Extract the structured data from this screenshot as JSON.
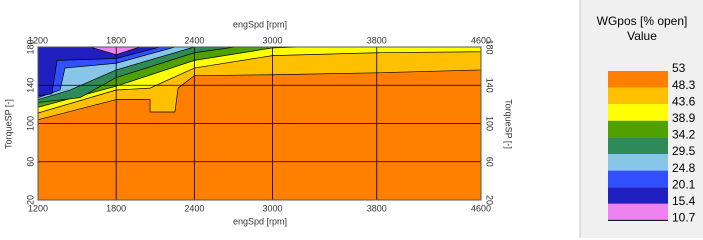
{
  "chart_data": {
    "type": "contour",
    "x_label": "engSpd [rpm]",
    "y_label": "TorqueSP [-]",
    "legend_title": "WGpos [% open]",
    "legend_subtitle": "Value",
    "xlim": [
      1200,
      4600
    ],
    "xticks": [
      1200,
      1800,
      2400,
      3000,
      3800,
      4600
    ],
    "ylim": [
      20,
      180
    ],
    "yticks": [
      20,
      60,
      100,
      140,
      180
    ],
    "grid": true,
    "levels": [
      53,
      48.3,
      43.6,
      38.9,
      34.2,
      29.5,
      24.8,
      20.1,
      15.4,
      10.7
    ],
    "band_colors": [
      "#ff8000",
      "#ffc000",
      "#ffff00",
      "#50a000",
      "#2e8b57",
      "#87c6e8",
      "#3050ff",
      "#2020c0",
      "#ee82ee"
    ],
    "regions": [
      {
        "band": 0,
        "points": [
          [
            1200,
            20
          ],
          [
            4600,
            20
          ],
          [
            4600,
            180
          ],
          [
            1200,
            180
          ]
        ]
      },
      {
        "band": 1,
        "points": [
          [
            1200,
            104
          ],
          [
            1800,
            125
          ],
          [
            2060,
            125
          ],
          [
            2060,
            112
          ],
          [
            2251,
            112
          ],
          [
            2275,
            137
          ],
          [
            2400,
            150
          ],
          [
            3000,
            151
          ],
          [
            3800,
            153
          ],
          [
            4600,
            156
          ],
          [
            4600,
            180
          ],
          [
            1200,
            180
          ]
        ]
      },
      {
        "band": 2,
        "points": [
          [
            1200,
            111
          ],
          [
            1800,
            135
          ],
          [
            2060,
            137
          ],
          [
            2400,
            158
          ],
          [
            3000,
            171
          ],
          [
            3800,
            174
          ],
          [
            4600,
            175
          ],
          [
            4600,
            180
          ],
          [
            1200,
            180
          ]
        ]
      },
      {
        "band": 3,
        "points": [
          [
            1200,
            117
          ],
          [
            1800,
            139
          ],
          [
            2400,
            166
          ],
          [
            3000,
            179
          ],
          [
            3211,
            180
          ],
          [
            1200,
            180
          ]
        ]
      },
      {
        "band": 4,
        "points": [
          [
            1200,
            122
          ],
          [
            1522,
            127
          ],
          [
            1800,
            148
          ],
          [
            2400,
            174
          ],
          [
            2712,
            180
          ],
          [
            1200,
            180
          ]
        ]
      },
      {
        "band": 5,
        "points": [
          [
            1200,
            125
          ],
          [
            1446,
            135
          ],
          [
            1800,
            156
          ],
          [
            2400,
            180
          ],
          [
            1200,
            180
          ]
        ]
      },
      {
        "band": 6,
        "points": [
          [
            1200,
            127
          ],
          [
            1369,
            135
          ],
          [
            1407,
            158
          ],
          [
            1800,
            163
          ],
          [
            2251,
            180
          ],
          [
            1200,
            180
          ]
        ]
      },
      {
        "band": 7,
        "points": [
          [
            1200,
            129
          ],
          [
            1307,
            131
          ],
          [
            1346,
            166
          ],
          [
            1800,
            168
          ],
          [
            2136,
            180
          ],
          [
            1200,
            180
          ]
        ]
      },
      {
        "band": 8,
        "points": [
          [
            1599,
            180
          ],
          [
            1800,
            172
          ],
          [
            1983,
            180
          ]
        ]
      }
    ]
  }
}
